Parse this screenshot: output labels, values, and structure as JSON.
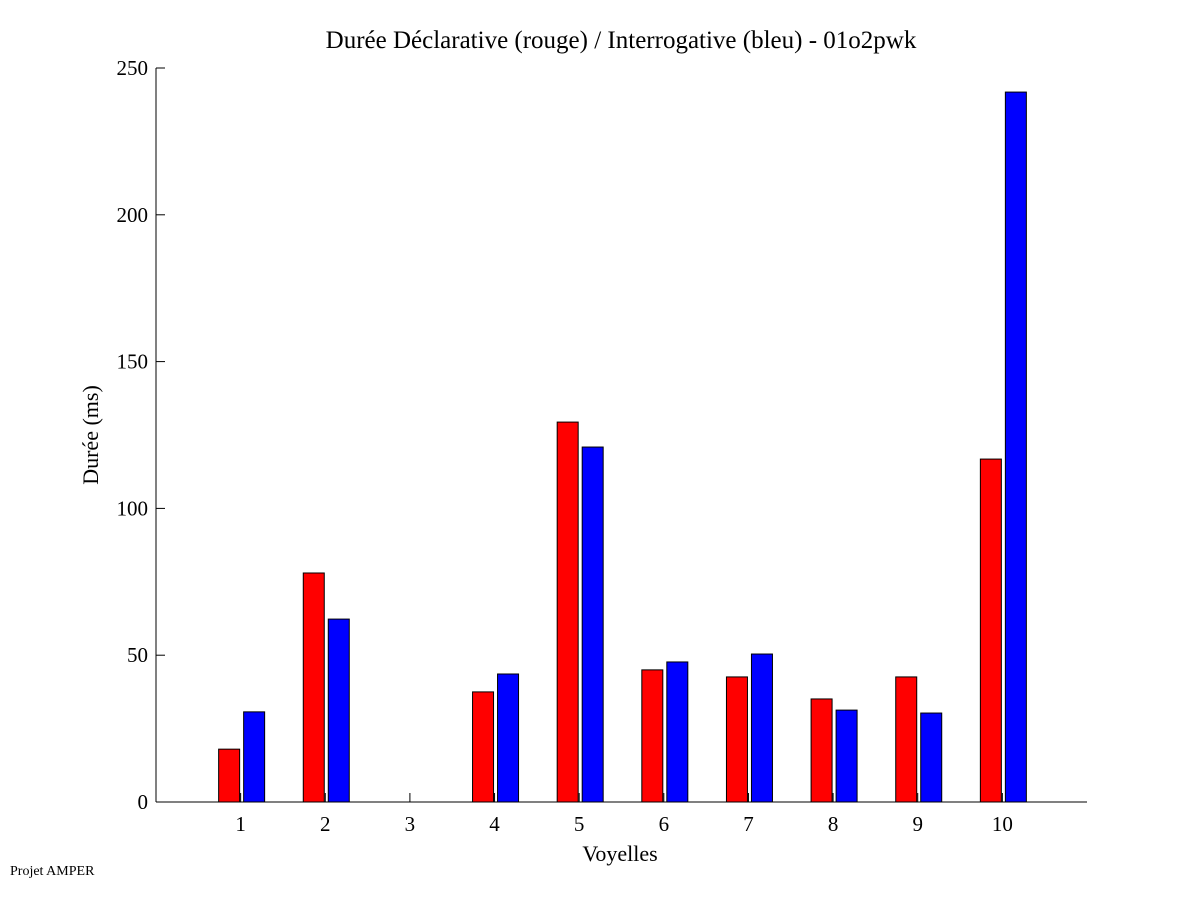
{
  "chart_data": {
    "type": "bar",
    "title": "Durée Déclarative (rouge) / Interrogative (bleu) - 01o2pwk",
    "xlabel": "Voyelles",
    "ylabel": "Durée (ms)",
    "categories": [
      "1",
      "2",
      "3",
      "4",
      "5",
      "6",
      "7",
      "8",
      "9",
      "10"
    ],
    "ylim": [
      0,
      250
    ],
    "xlim": [
      0,
      11
    ],
    "yticks": [
      0,
      50,
      100,
      150,
      200,
      250
    ],
    "grid": false,
    "series": [
      {
        "name": "Déclarative",
        "color": "#ff0000",
        "values": [
          18,
          78,
          0,
          37.5,
          129.4,
          45,
          42.6,
          35.1,
          42.6,
          116.8
        ]
      },
      {
        "name": "Interrogative",
        "color": "#0000ff",
        "values": [
          30.7,
          62.3,
          0,
          43.6,
          120.9,
          47.7,
          50.4,
          31.3,
          30.3,
          241.8
        ]
      }
    ]
  },
  "footer": "Projet AMPER"
}
